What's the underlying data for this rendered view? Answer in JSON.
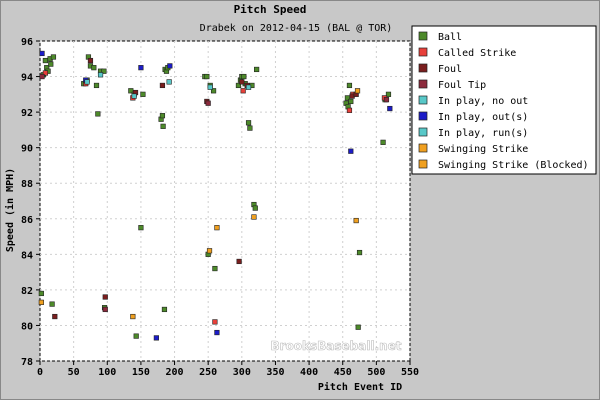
{
  "chart_data": {
    "type": "scatter",
    "title": "Pitch Speed",
    "subtitle": "Drabek on 2012-04-15 (BAL @ TOR)",
    "xlabel": "Pitch Event ID",
    "ylabel": "Speed (in MPH)",
    "xlim": [
      0,
      550
    ],
    "ylim": [
      78,
      96
    ],
    "xticks": [
      0,
      50,
      100,
      150,
      200,
      250,
      300,
      350,
      400,
      450,
      500,
      550
    ],
    "yticks": [
      78,
      80,
      82,
      84,
      86,
      88,
      90,
      92,
      94,
      96
    ],
    "grid": true,
    "legend_position": "right",
    "watermark": "BrooksBaseball.net",
    "series": [
      {
        "name": "Ball",
        "color": "#4d8a2a",
        "points": [
          [
            2,
            81.8
          ],
          [
            5,
            94.1
          ],
          [
            8,
            94.9
          ],
          [
            10,
            94.5
          ],
          [
            12,
            94.3
          ],
          [
            15,
            95.0
          ],
          [
            16,
            94.7
          ],
          [
            18,
            81.2
          ],
          [
            20,
            95.1
          ],
          [
            65,
            93.6
          ],
          [
            70,
            93.8
          ],
          [
            72,
            95.1
          ],
          [
            75,
            94.6
          ],
          [
            80,
            94.5
          ],
          [
            84,
            93.5
          ],
          [
            86,
            91.9
          ],
          [
            90,
            94.3
          ],
          [
            95,
            94.3
          ],
          [
            96,
            81.0
          ],
          [
            135,
            93.2
          ],
          [
            140,
            93.0
          ],
          [
            143,
            79.4
          ],
          [
            150,
            85.5
          ],
          [
            153,
            93.0
          ],
          [
            180,
            91.6
          ],
          [
            182,
            91.8
          ],
          [
            183,
            91.2
          ],
          [
            185,
            80.9
          ],
          [
            186,
            94.4
          ],
          [
            188,
            94.3
          ],
          [
            190,
            94.5
          ],
          [
            245,
            94.0
          ],
          [
            248,
            94.0
          ],
          [
            250,
            84.0
          ],
          [
            253,
            93.5
          ],
          [
            258,
            93.2
          ],
          [
            260,
            83.2
          ],
          [
            295,
            93.5
          ],
          [
            298,
            93.8
          ],
          [
            300,
            94.0
          ],
          [
            303,
            94.0
          ],
          [
            305,
            93.6
          ],
          [
            310,
            91.4
          ],
          [
            312,
            91.1
          ],
          [
            315,
            93.5
          ],
          [
            318,
            86.8
          ],
          [
            320,
            86.6
          ],
          [
            322,
            94.4
          ],
          [
            455,
            92.5
          ],
          [
            457,
            92.8
          ],
          [
            458,
            92.3
          ],
          [
            460,
            93.5
          ],
          [
            462,
            92.6
          ],
          [
            473,
            79.9
          ],
          [
            475,
            84.1
          ],
          [
            510,
            90.3
          ],
          [
            513,
            92.7
          ],
          [
            518,
            93.0
          ]
        ]
      },
      {
        "name": "Called Strike",
        "color": "#e8403a",
        "points": [
          [
            8,
            94.2
          ],
          [
            68,
            93.6
          ],
          [
            138,
            92.8
          ],
          [
            260,
            80.2
          ],
          [
            302,
            93.2
          ],
          [
            460,
            92.1
          ],
          [
            465,
            93.0
          ],
          [
            512,
            92.8
          ]
        ]
      },
      {
        "name": "Foul",
        "color": "#7a1e1e",
        "points": [
          [
            22,
            80.5
          ],
          [
            75,
            94.9
          ],
          [
            97,
            81.6
          ],
          [
            142,
            93.1
          ],
          [
            182,
            93.5
          ],
          [
            248,
            92.6
          ],
          [
            296,
            83.6
          ],
          [
            300,
            93.7
          ],
          [
            308,
            93.5
          ],
          [
            464,
            92.9
          ],
          [
            470,
            93.0
          ]
        ]
      },
      {
        "name": "Foul Tip",
        "color": "#8c2a3c",
        "points": [
          [
            3,
            94.0
          ],
          [
            97,
            80.9
          ],
          [
            250,
            92.5
          ],
          [
            515,
            92.7
          ]
        ]
      },
      {
        "name": "In play, no out",
        "color": "#58c8c8",
        "points": [
          [
            90,
            94.1
          ],
          [
            192,
            93.7
          ],
          [
            253,
            93.4
          ]
        ]
      },
      {
        "name": "In play, out(s)",
        "color": "#1c1cc8",
        "points": [
          [
            3,
            95.3
          ],
          [
            68,
            93.8
          ],
          [
            150,
            94.5
          ],
          [
            173,
            79.3
          ],
          [
            193,
            94.6
          ],
          [
            263,
            79.6
          ],
          [
            462,
            89.8
          ],
          [
            520,
            92.2
          ]
        ]
      },
      {
        "name": "In play, run(s)",
        "color": "#58c8c8",
        "points": [
          [
            70,
            93.7
          ],
          [
            140,
            92.9
          ],
          [
            310,
            93.4
          ]
        ]
      },
      {
        "name": "Swinging Strike",
        "color": "#f0a020",
        "points": [
          [
            2,
            81.3
          ],
          [
            138,
            80.5
          ],
          [
            252,
            84.2
          ],
          [
            263,
            85.5
          ],
          [
            318,
            86.1
          ],
          [
            470,
            85.9
          ],
          [
            472,
            93.2
          ]
        ]
      },
      {
        "name": "Swinging Strike (Blocked)",
        "color": "#f0a020",
        "points": []
      }
    ]
  }
}
